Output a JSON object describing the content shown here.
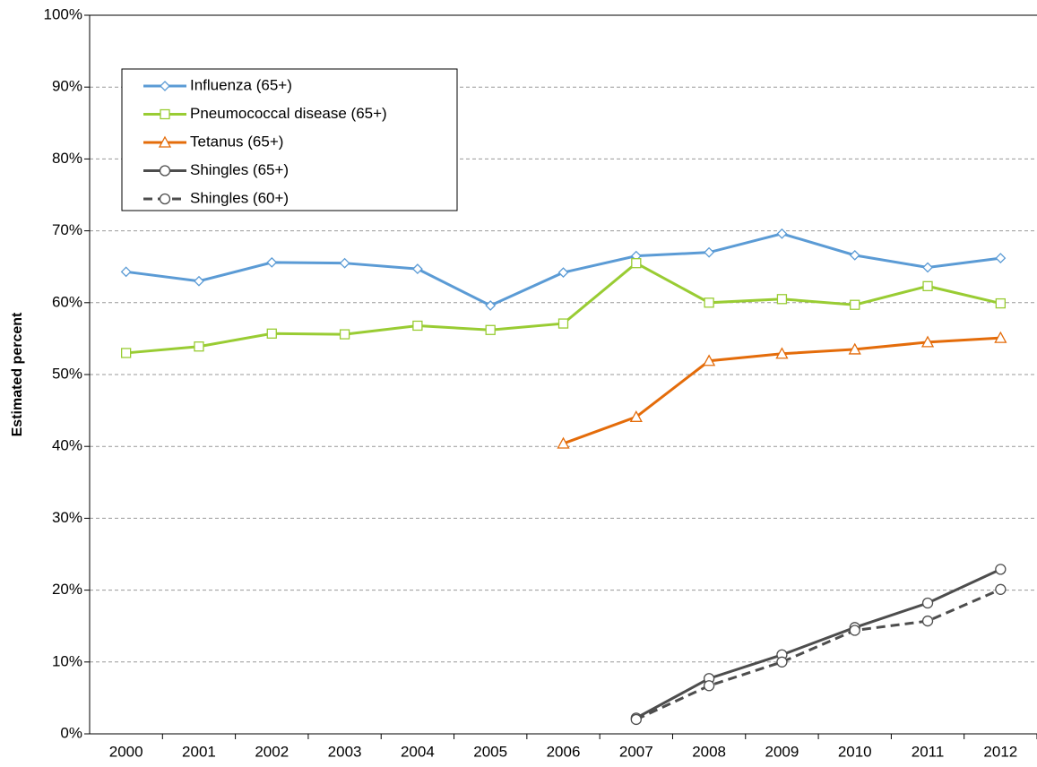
{
  "chart_data": {
    "type": "line",
    "y_label": "Estimated percent",
    "categories": [
      "2000",
      "2001",
      "2002",
      "2003",
      "2004",
      "2005",
      "2006",
      "2007",
      "2008",
      "2009",
      "2010",
      "2011",
      "2012"
    ],
    "series": [
      {
        "name": "Influenza (65+)",
        "color": "#5b9bd5",
        "marker": "diamond",
        "dash": false,
        "values": [
          64.3,
          63.0,
          65.6,
          65.5,
          64.7,
          59.6,
          64.2,
          66.5,
          67.0,
          69.6,
          66.6,
          64.9,
          66.2
        ]
      },
      {
        "name": "Pneumococcal disease (65+)",
        "color": "#99cc33",
        "marker": "square",
        "dash": false,
        "values": [
          53.0,
          53.9,
          55.7,
          55.6,
          56.8,
          56.2,
          57.1,
          65.5,
          60.0,
          60.5,
          59.7,
          62.3,
          59.9
        ]
      },
      {
        "name": "Tetanus (65+)",
        "color": "#e46c0a",
        "marker": "triangle",
        "dash": false,
        "values": [
          null,
          null,
          null,
          null,
          null,
          null,
          40.4,
          44.1,
          51.9,
          52.9,
          53.5,
          54.5,
          55.1
        ]
      },
      {
        "name": "Shingles (65+)",
        "color": "#4d4d4d",
        "marker": "circle",
        "dash": false,
        "values": [
          null,
          null,
          null,
          null,
          null,
          null,
          null,
          2.2,
          7.7,
          11.0,
          14.8,
          18.2,
          22.9
        ]
      },
      {
        "name": "Shingles (60+)",
        "color": "#4d4d4d",
        "marker": "circle",
        "dash": true,
        "values": [
          null,
          null,
          null,
          null,
          null,
          null,
          null,
          2.0,
          6.7,
          10.0,
          14.4,
          15.7,
          20.1
        ]
      }
    ],
    "ylim": [
      0,
      100
    ],
    "yticks": [
      {
        "value": 0,
        "label": "0%"
      },
      {
        "value": 10,
        "label": "10%"
      },
      {
        "value": 20,
        "label": "20%"
      },
      {
        "value": 30,
        "label": "30%"
      },
      {
        "value": 40,
        "label": "40%"
      },
      {
        "value": 50,
        "label": "50%"
      },
      {
        "value": 60,
        "label": "60%"
      },
      {
        "value": 70,
        "label": "70%"
      },
      {
        "value": 80,
        "label": "80%"
      },
      {
        "value": 90,
        "label": "90%"
      },
      {
        "value": 100,
        "label": "100%"
      }
    ],
    "grid": true,
    "legend": "upper left"
  }
}
